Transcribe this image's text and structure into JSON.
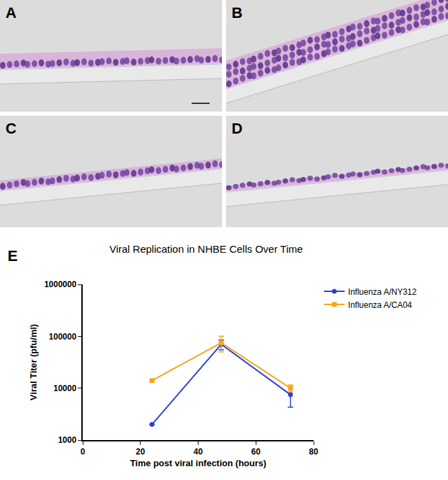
{
  "panels": [
    {
      "label": "A"
    },
    {
      "label": "B"
    },
    {
      "label": "C"
    },
    {
      "label": "D"
    }
  ],
  "chart_data": {
    "type": "line",
    "panel_label": "E",
    "title": "Viral Replication in NHBE Cells Over Time",
    "x_label": "Time post viral infection (hours)",
    "y_label": "Viral Titer (pfu/ml)",
    "x": [
      24,
      48,
      72
    ],
    "series": [
      {
        "name": "Influenza A/NY312",
        "color": "#2b3fd6",
        "marker": "circle",
        "values": [
          2000,
          70000,
          7500
        ],
        "error": [
          0,
          15000,
          3200
        ]
      },
      {
        "name": "Influenza A/CA04",
        "color": "#f5a623",
        "marker": "square",
        "values": [
          14000,
          75000,
          10000
        ],
        "error": [
          0,
          25000,
          1500
        ]
      }
    ],
    "xlim": [
      0,
      80
    ],
    "xticks": [
      0,
      20,
      40,
      60,
      80
    ],
    "ylim": [
      1000,
      1000000
    ],
    "yticks": [
      1000,
      10000,
      100000,
      1000000
    ],
    "log": "y",
    "grid": false,
    "legend": "upper right"
  }
}
